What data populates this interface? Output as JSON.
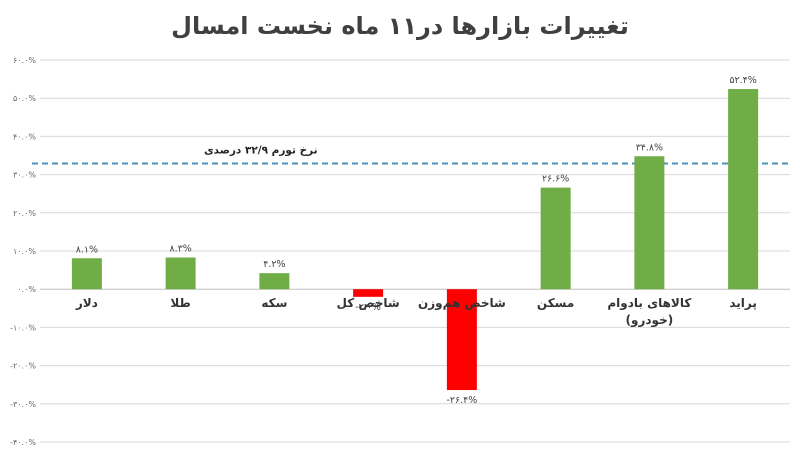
{
  "chart_data": {
    "type": "bar",
    "title": "تغییرات بازارها در۱۱ ماه نخست امسال",
    "categories": [
      "دلار",
      "طلا",
      "سکه",
      "شاخص کل",
      "شاخص هم‌وزن",
      "مسکن",
      "کالاهای بادوام",
      "پراید"
    ],
    "category_sublabels": [
      "",
      "",
      "",
      "",
      "",
      "",
      "(خودرو)",
      ""
    ],
    "values": [
      8.1,
      8.3,
      4.2,
      -2.0,
      -26.4,
      26.6,
      34.8,
      52.4
    ],
    "data_labels": [
      "۸.۱%",
      "۸.۳%",
      "۴.۲%",
      "-۲.۰%",
      "-۲۶.۴%",
      "۲۶.۶%",
      "۳۴.۸%",
      "۵۲.۴%"
    ],
    "ylim": [
      -40,
      60
    ],
    "yticks": [
      -40,
      -30,
      -20,
      -10,
      0,
      10,
      20,
      30,
      40,
      50,
      60
    ],
    "ytick_labels": [
      "-۴۰.۰%",
      "-۳۰.۰%",
      "-۲۰.۰%",
      "-۱۰.۰%",
      "۰.۰%",
      "۱۰.۰%",
      "۲۰.۰%",
      "۳۰.۰%",
      "۴۰.۰%",
      "۵۰.۰%",
      "۶۰.۰%"
    ],
    "grid": true,
    "reference_line": {
      "value": 32.9,
      "label": "نرخ تورم ۳۲/۹ درصدی",
      "color": "#4a90b8"
    },
    "colors": {
      "positive": "#70ad47",
      "negative": "#ff0000",
      "grid": "#d9d9d9"
    }
  }
}
